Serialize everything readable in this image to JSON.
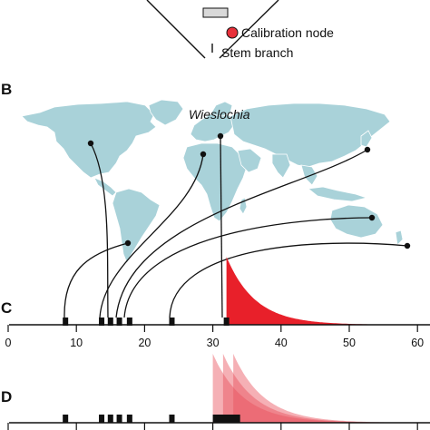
{
  "panel_a": {
    "calibration_node_label": "Calibration node",
    "stem_branch_label": "Stem branch",
    "colors": {
      "node_fill": "#e8303a",
      "branch_box": "#d9d9d9"
    }
  },
  "panel_b": {
    "letter": "B",
    "taxon_label": "Wieslochia",
    "colors": {
      "land": "#a9d2d9",
      "borders": "#ffffff",
      "connector": "#111111"
    }
  },
  "panel_c": {
    "letter": "C",
    "axis_ticks": [
      "0",
      "10",
      "20",
      "30",
      "40",
      "50",
      "60"
    ],
    "colors": {
      "prior": "#e8202a"
    }
  },
  "panel_d": {
    "letter": "D",
    "colors": {
      "prior": "#e8505a"
    }
  },
  "chart_data": {
    "type": "scatter",
    "xlim": [
      0,
      62
    ],
    "x_ticks": [
      0,
      10,
      20,
      30,
      40,
      50,
      60
    ],
    "fossil_ages": [
      8.4,
      13.7,
      15.0,
      16.3,
      17.8,
      24.0,
      32.0
    ],
    "calibration_min_age": 32.0,
    "calibration_density": "exponential decay from 32 toward 62",
    "panel_d_fossil_ages": [
      8.4,
      13.7,
      15.0,
      16.3,
      17.8,
      24.0
    ],
    "panel_d_block": [
      30.0,
      34.0
    ],
    "panel_d_prior_offsets": [
      30.0,
      31.5,
      33.0
    ]
  }
}
